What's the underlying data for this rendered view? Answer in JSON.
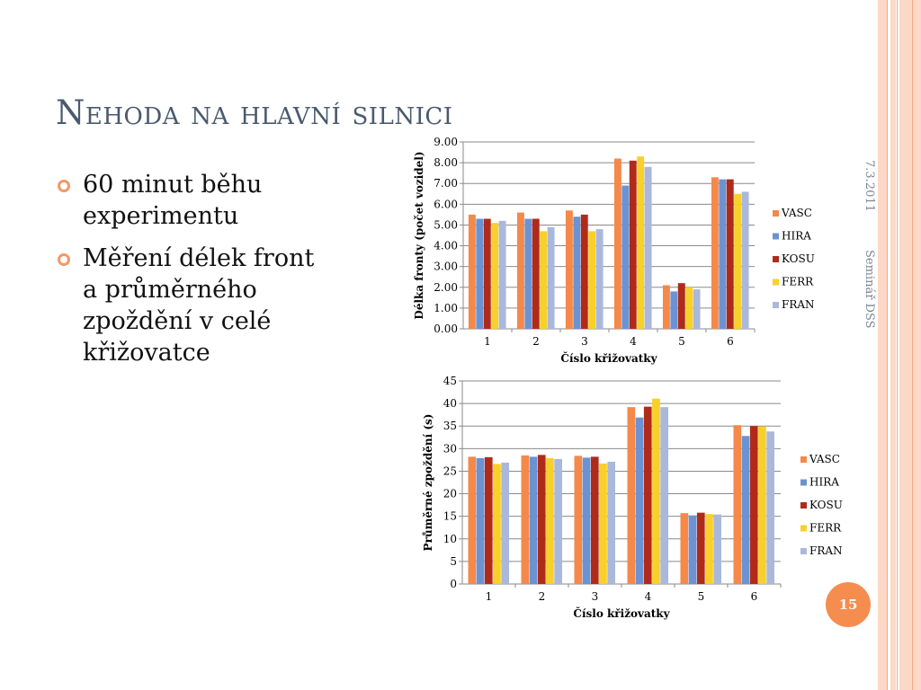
{
  "slide": {
    "title": "Nehoda na hlavní silnici",
    "bullets": [
      "60 minut běhu experimentu",
      "Měření délek front a průměrného zpoždění v celé křižovatce"
    ],
    "date": "7.3.2011",
    "footer": "Seminář DSS",
    "page_number": "15"
  },
  "colors": {
    "accent": "#f58d4f",
    "title": "#4a5a6e",
    "bullet": "#f09a67"
  },
  "chart_data": [
    {
      "type": "bar",
      "title": "",
      "xlabel": "Číslo křižovatky",
      "ylabel": "Délka fronty (počet vozidel)",
      "categories": [
        "1",
        "2",
        "3",
        "4",
        "5",
        "6"
      ],
      "ylim": [
        0,
        9
      ],
      "yticks": [
        "0.00",
        "1.00",
        "2.00",
        "3.00",
        "4.00",
        "5.00",
        "6.00",
        "7.00",
        "8.00",
        "9.00"
      ],
      "grid": true,
      "legend": "right",
      "series": [
        {
          "name": "VASC",
          "color": "#f4894a",
          "values": [
            5.5,
            5.6,
            5.7,
            8.2,
            2.1,
            7.3
          ]
        },
        {
          "name": "HIRA",
          "color": "#6b93d3",
          "values": [
            5.3,
            5.3,
            5.4,
            6.9,
            1.8,
            7.2
          ]
        },
        {
          "name": "KOSU",
          "color": "#b02a1a",
          "values": [
            5.3,
            5.3,
            5.5,
            8.1,
            2.2,
            7.2
          ]
        },
        {
          "name": "FERR",
          "color": "#f8d02a",
          "values": [
            5.1,
            4.7,
            4.7,
            8.3,
            2.0,
            6.5
          ]
        },
        {
          "name": "FRAN",
          "color": "#a9b8db",
          "values": [
            5.2,
            4.9,
            4.8,
            7.8,
            1.9,
            6.6
          ]
        }
      ]
    },
    {
      "type": "bar",
      "title": "",
      "xlabel": "Číslo křižovatky",
      "ylabel": "Průměrné zpoždění (s)",
      "categories": [
        "1",
        "2",
        "3",
        "4",
        "5",
        "6"
      ],
      "ylim": [
        0,
        45
      ],
      "yticks": [
        "0",
        "5",
        "10",
        "15",
        "20",
        "25",
        "30",
        "35",
        "40",
        "45"
      ],
      "grid": true,
      "legend": "right",
      "series": [
        {
          "name": "VASC",
          "color": "#f4894a",
          "values": [
            28.2,
            28.5,
            28.4,
            39.2,
            15.7,
            35.2
          ]
        },
        {
          "name": "HIRA",
          "color": "#6b93d3",
          "values": [
            27.9,
            28.2,
            28.0,
            36.9,
            15.2,
            32.8
          ]
        },
        {
          "name": "KOSU",
          "color": "#b02a1a",
          "values": [
            28.1,
            28.6,
            28.2,
            39.3,
            15.8,
            35.0
          ]
        },
        {
          "name": "FERR",
          "color": "#f8d02a",
          "values": [
            26.6,
            27.9,
            26.7,
            41.1,
            15.5,
            34.9
          ]
        },
        {
          "name": "FRAN",
          "color": "#a9b8db",
          "values": [
            26.9,
            27.7,
            27.1,
            39.2,
            15.4,
            33.8
          ]
        }
      ]
    }
  ]
}
